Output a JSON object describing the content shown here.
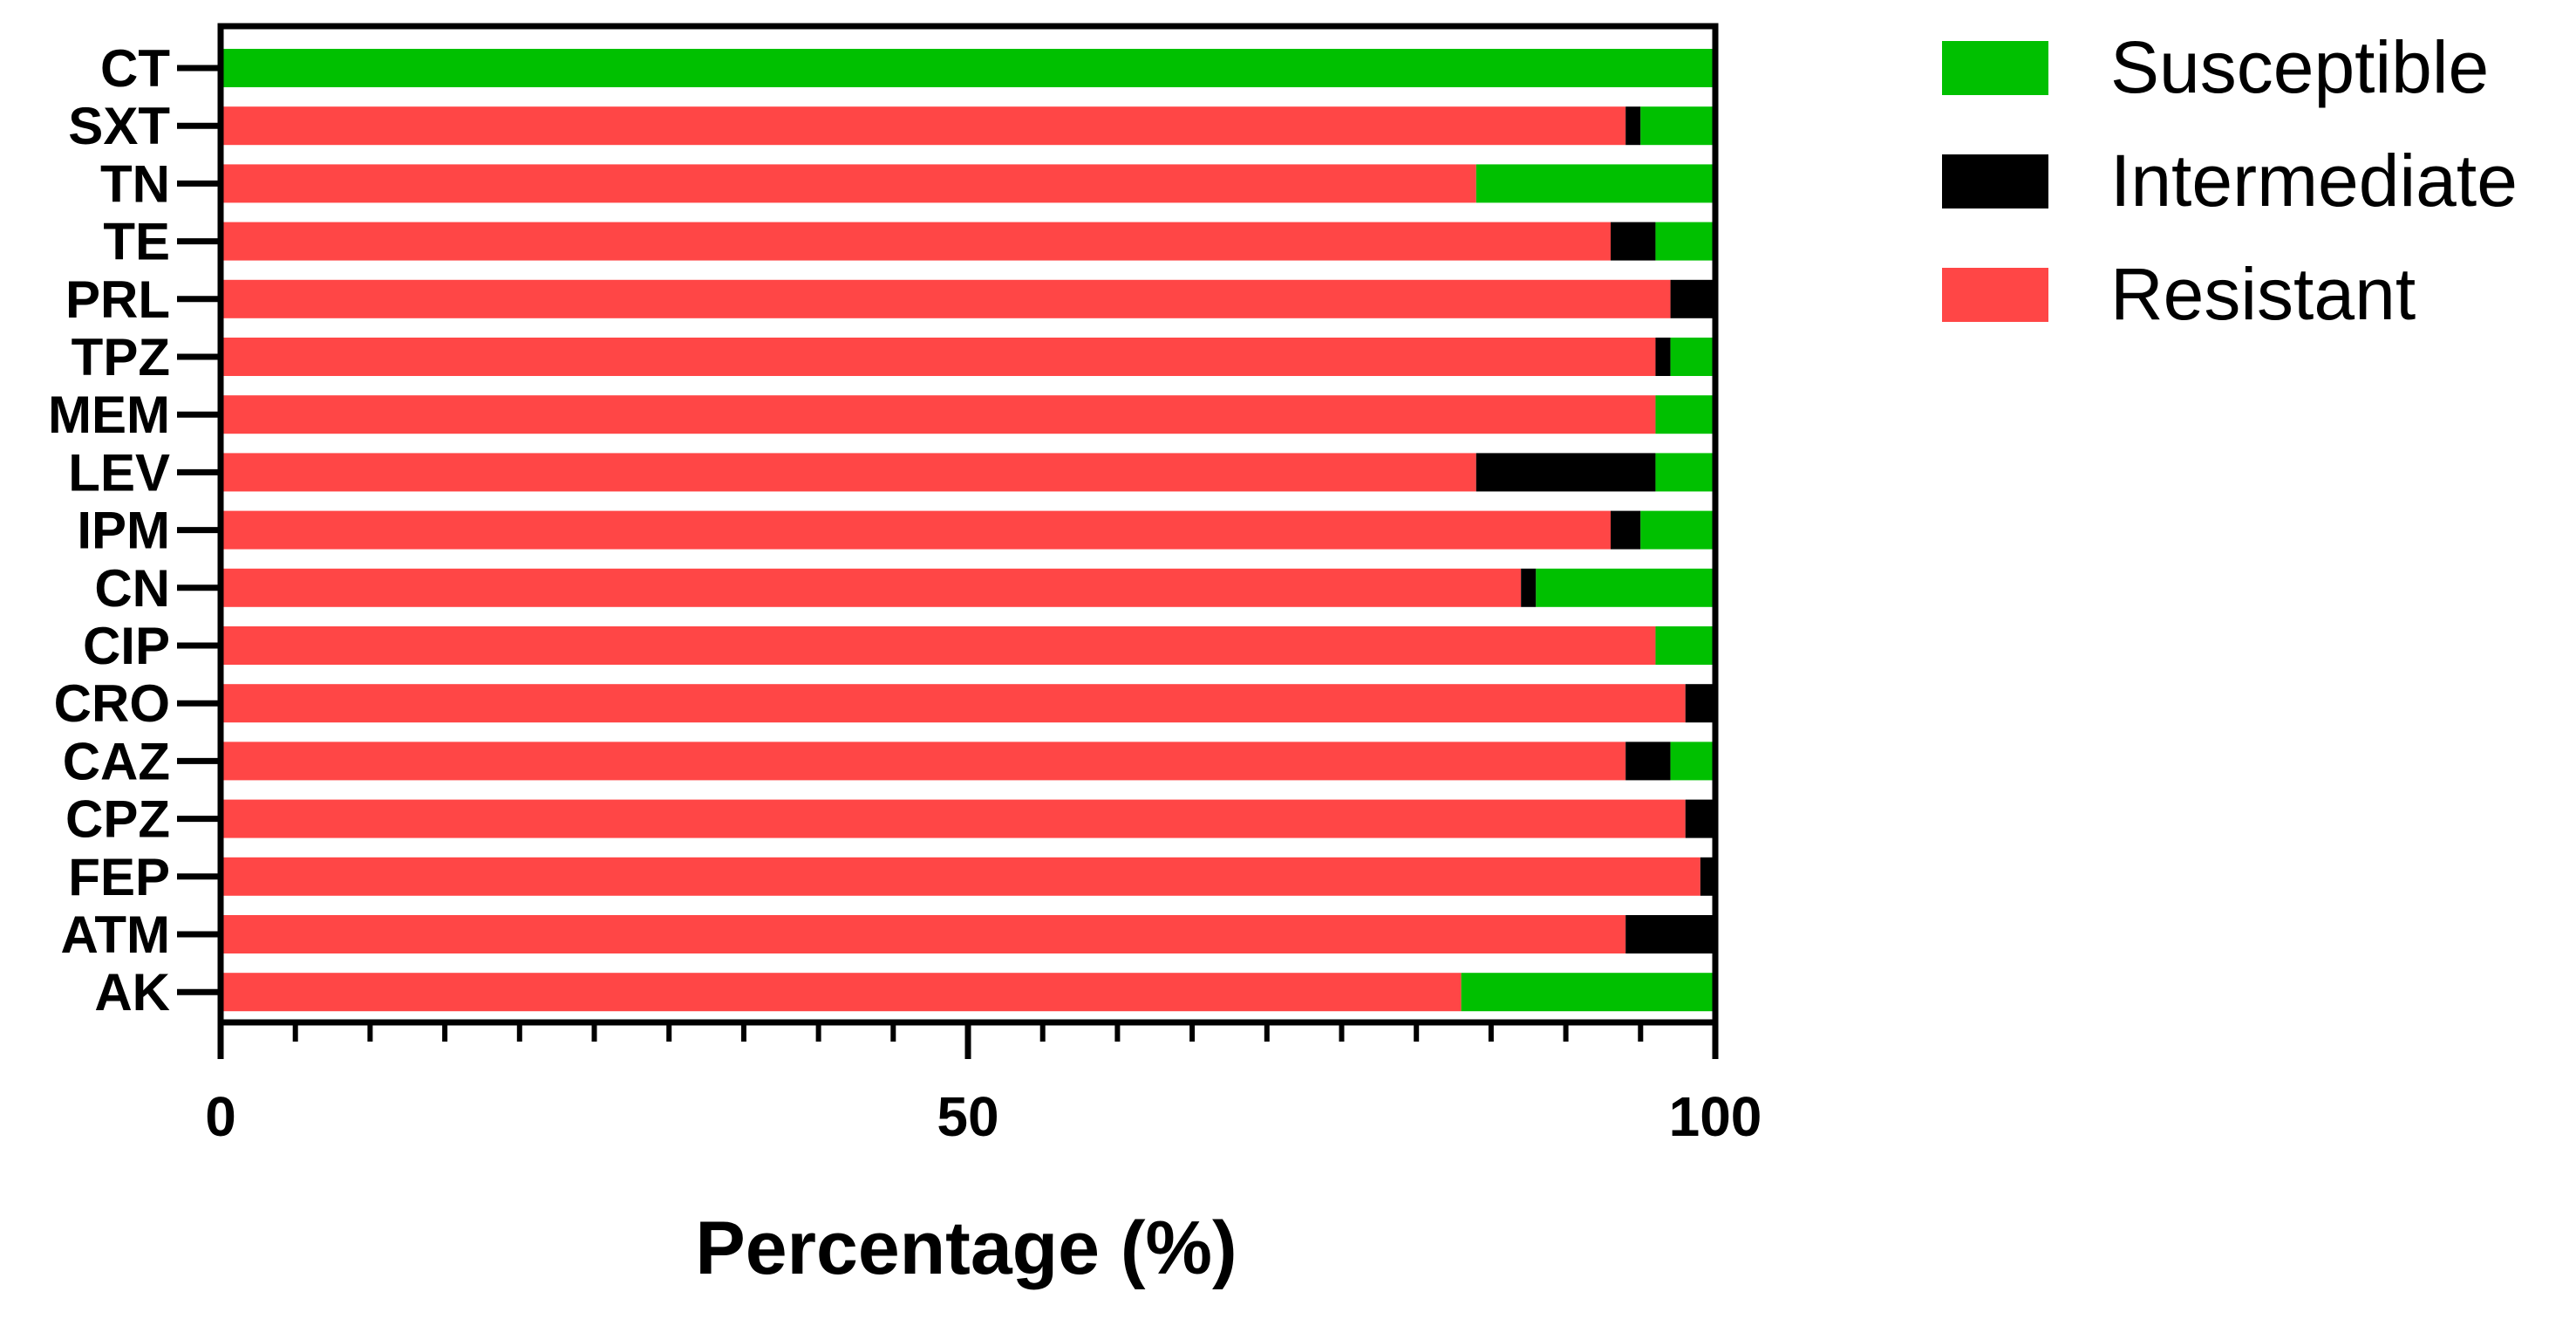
{
  "chart_data": {
    "type": "bar",
    "orientation": "horizontal",
    "stacked": true,
    "categories": [
      "CT",
      "SXT",
      "TN",
      "TE",
      "PRL",
      "TPZ",
      "MEM",
      "LEV",
      "IPM",
      "CN",
      "CIP",
      "CRO",
      "CAZ",
      "CPZ",
      "FEP",
      "ATM",
      "AK"
    ],
    "series": [
      {
        "name": "Resistant",
        "color": "#ff4646",
        "values": [
          0,
          94,
          84,
          93,
          97,
          96,
          96,
          84,
          93,
          87,
          96,
          98,
          94,
          98,
          99,
          94,
          83
        ]
      },
      {
        "name": "Intermediate",
        "color": "#000000",
        "values": [
          0,
          1,
          0,
          3,
          3,
          1,
          0,
          12,
          2,
          1,
          0,
          2,
          3,
          2,
          1,
          6,
          0
        ]
      },
      {
        "name": "Susceptible",
        "color": "#00c000",
        "values": [
          100,
          5,
          16,
          4,
          0,
          3,
          4,
          4,
          5,
          12,
          4,
          0,
          3,
          0,
          0,
          0,
          17
        ]
      }
    ],
    "legend_order": [
      "Susceptible",
      "Intermediate",
      "Resistant"
    ],
    "legend_position": "top-right",
    "xlabel": "Percentage (%)",
    "ylabel": "",
    "title": "",
    "xlim": [
      0,
      100
    ],
    "x_major_ticks": [
      0,
      50,
      100
    ],
    "x_minor_ticks": [
      5,
      10,
      15,
      20,
      25,
      30,
      35,
      40,
      45,
      55,
      60,
      65,
      70,
      75,
      80,
      85,
      90,
      95
    ],
    "grid": false
  }
}
